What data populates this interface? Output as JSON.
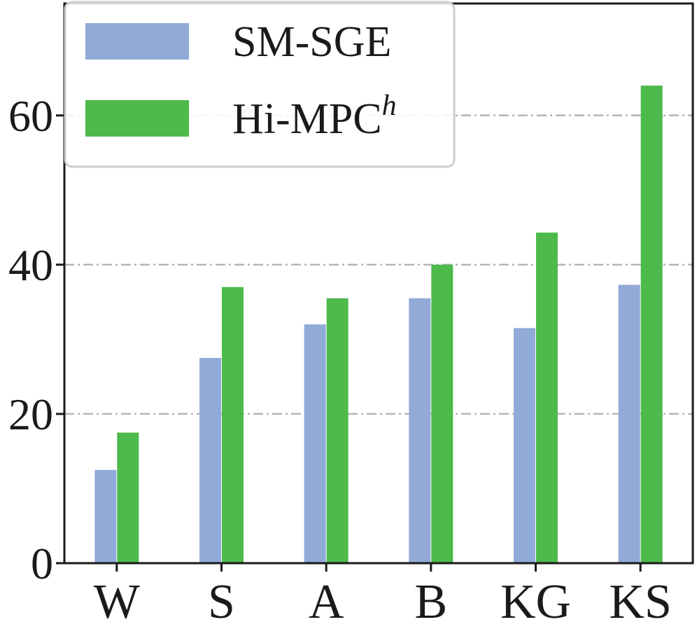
{
  "chart_data": {
    "type": "bar",
    "categories": [
      "W",
      "S",
      "A",
      "B",
      "KG",
      "KS"
    ],
    "series": [
      {
        "name": "SM-SGE",
        "values": [
          12.5,
          27.5,
          32.0,
          35.5,
          31.5,
          37.3
        ],
        "color": "#91aad8"
      },
      {
        "name": "Hi-MPC",
        "name_superscript": "h",
        "values": [
          17.5,
          37.0,
          35.5,
          40.0,
          44.3,
          64.0
        ],
        "color": "#4dba4b"
      }
    ],
    "ylim": [
      0,
      75
    ],
    "yticks": [
      0,
      20,
      40,
      60
    ],
    "grid": true,
    "grid_style": "dash-dot",
    "legend_position": "top-left",
    "title": "",
    "xlabel": "",
    "ylabel": ""
  }
}
